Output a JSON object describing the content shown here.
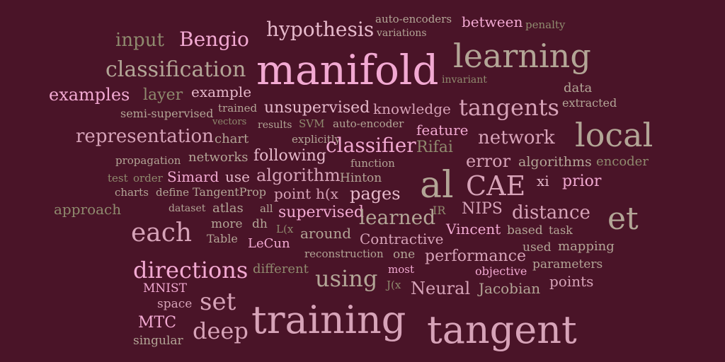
{
  "palette": {
    "background": "#4a1428",
    "c1": "#f2a9d2",
    "c2": "#d7a3b8",
    "c3": "#b3a596",
    "c4": "#8f8a6e",
    "c5": "#e6b9cb"
  },
  "words": {
    "w0": "input",
    "w1": "Bengio",
    "w2": "hypothesis",
    "w3": "auto-encoders",
    "w4": "variations",
    "w5": "between",
    "w6": "penalty",
    "w7": "classification",
    "w8": "manifold",
    "w9": "learning",
    "w10": "invariant",
    "w11": "examples",
    "w12": "layer",
    "w13": "example",
    "w14": "data",
    "w15": "semi-supervised",
    "w16": "trained",
    "w17": "unsupervised",
    "w18": "knowledge",
    "w19": "tangents",
    "w20": "extracted",
    "w21": "vectors",
    "w22": "results",
    "w23": "SVM",
    "w24": "auto-encoder",
    "w25": "local",
    "w26": "representation",
    "w27": "chart",
    "w28": "explicitly",
    "w29": "feature",
    "w30": "network",
    "w31": "propagation",
    "w32": "networks",
    "w33": "following",
    "w34": "classifier",
    "w35": "Rifai",
    "w36": "function",
    "w37": "error",
    "w38": "algorithms",
    "w39": "encoder",
    "w40": "test",
    "w41": "order",
    "w42": "Simard",
    "w43": "use",
    "w44": "algorithm",
    "w45": "Hinton",
    "w46": "al",
    "w47": "CAE",
    "w48": "xi",
    "w49": "prior",
    "w50": "charts",
    "w51": "define",
    "w52": "TangentProp",
    "w53": "point",
    "w54": "h(x",
    "w55": "pages",
    "w56": "approach",
    "w57": "dataset",
    "w58": "atlas",
    "w59": "all",
    "w60": "supervised",
    "w61": "learned",
    "w62": "IR",
    "w63": "NIPS",
    "w64": "distance",
    "w65": "et",
    "w66": "each",
    "w67": "more",
    "w68": "dh",
    "w69": "L(x",
    "w70": "around",
    "w71": "Vincent",
    "w72": "based",
    "w73": "task",
    "w74": "Table",
    "w75": "LeCun",
    "w76": "Contractive",
    "w77": "used",
    "w78": "mapping",
    "w79": "reconstruction",
    "w80": "one",
    "w81": "performance",
    "w82": "directions",
    "w83": "different",
    "w84": "using",
    "w85": "most",
    "w86": "objective",
    "w87": "parameters",
    "w88": "MNIST",
    "w89": "J(x",
    "w90": "Neural",
    "w91": "Jacobian",
    "w92": "points",
    "w93": "space",
    "w94": "set",
    "w95": "MTC",
    "w96": "training",
    "w97": "tangent",
    "w98": "deep",
    "w99": "singular"
  }
}
